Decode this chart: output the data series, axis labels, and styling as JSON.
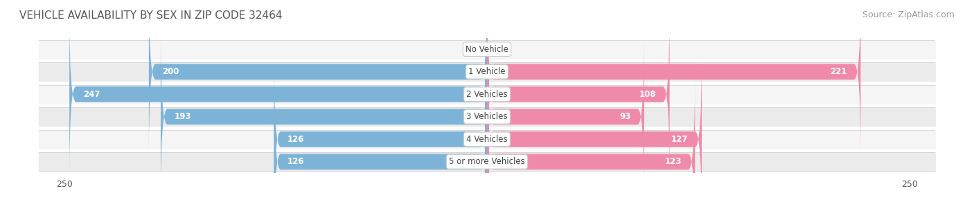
{
  "title": "VEHICLE AVAILABILITY BY SEX IN ZIP CODE 32464",
  "source": "Source: ZipAtlas.com",
  "categories": [
    "No Vehicle",
    "1 Vehicle",
    "2 Vehicles",
    "3 Vehicles",
    "4 Vehicles",
    "5 or more Vehicles"
  ],
  "male_values": [
    0,
    200,
    247,
    193,
    126,
    126
  ],
  "female_values": [
    0,
    221,
    108,
    93,
    127,
    123
  ],
  "male_color": "#7eb3d8",
  "female_color": "#f08aab",
  "row_bg_colors": [
    "#f5f5f5",
    "#ebebeb"
  ],
  "axis_max": 250,
  "label_color_dark": "#666666",
  "title_color": "#555555",
  "title_fontsize": 11,
  "source_fontsize": 9,
  "tick_fontsize": 9,
  "category_fontsize": 8.5,
  "value_fontsize": 8.5
}
